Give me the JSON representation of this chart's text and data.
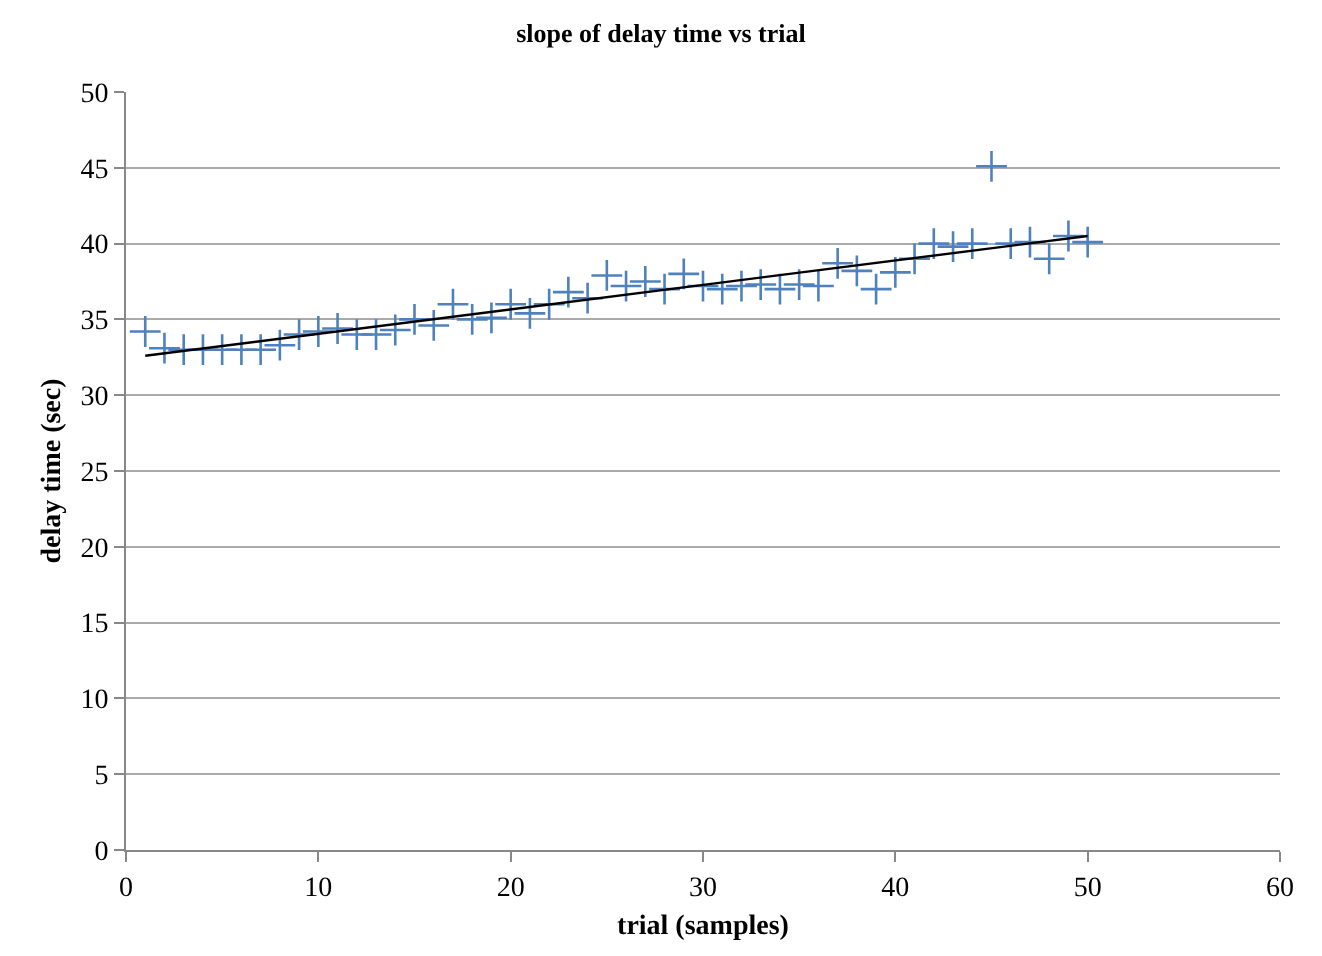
{
  "chart_data": {
    "type": "scatter",
    "title": "slope of delay time vs trial",
    "xlabel": "trial (samples)",
    "ylabel": "delay time (sec)",
    "xlim": [
      0,
      60
    ],
    "xticks": [
      0,
      10,
      20,
      30,
      40,
      50,
      60
    ],
    "ylim": [
      0,
      50
    ],
    "yticks": [
      0,
      5,
      10,
      15,
      20,
      25,
      30,
      35,
      40,
      45,
      50
    ],
    "grid": "y",
    "series": [
      {
        "marker": "cross",
        "color": "#4f81bd",
        "x": [
          1,
          2,
          3,
          4,
          5,
          6,
          7,
          8,
          9,
          10,
          11,
          12,
          13,
          14,
          15,
          16,
          17,
          18,
          19,
          20,
          21,
          22,
          23,
          24,
          25,
          26,
          27,
          28,
          29,
          30,
          31,
          32,
          33,
          34,
          35,
          36,
          37,
          38,
          39,
          40,
          41,
          42,
          43,
          44,
          45,
          46,
          47,
          48,
          49,
          50
        ],
        "values": [
          34.2,
          33.1,
          33.0,
          33.0,
          33.0,
          33.0,
          33.0,
          33.3,
          34.0,
          34.2,
          34.4,
          34.0,
          34.0,
          34.3,
          35.0,
          34.6,
          36.0,
          35.0,
          35.1,
          36.0,
          35.4,
          36.0,
          36.8,
          36.4,
          37.9,
          37.2,
          37.5,
          37.0,
          38.0,
          37.2,
          37.0,
          37.2,
          37.3,
          37.0,
          37.3,
          37.2,
          38.7,
          38.2,
          37.0,
          38.1,
          39.0,
          40.0,
          39.8,
          40.0,
          45.1,
          40.0,
          40.1,
          39.0,
          40.5,
          40.1
        ]
      },
      {
        "type": "line",
        "color": "#000000",
        "x": [
          1,
          50
        ],
        "values": [
          32.6,
          40.5
        ]
      }
    ]
  }
}
